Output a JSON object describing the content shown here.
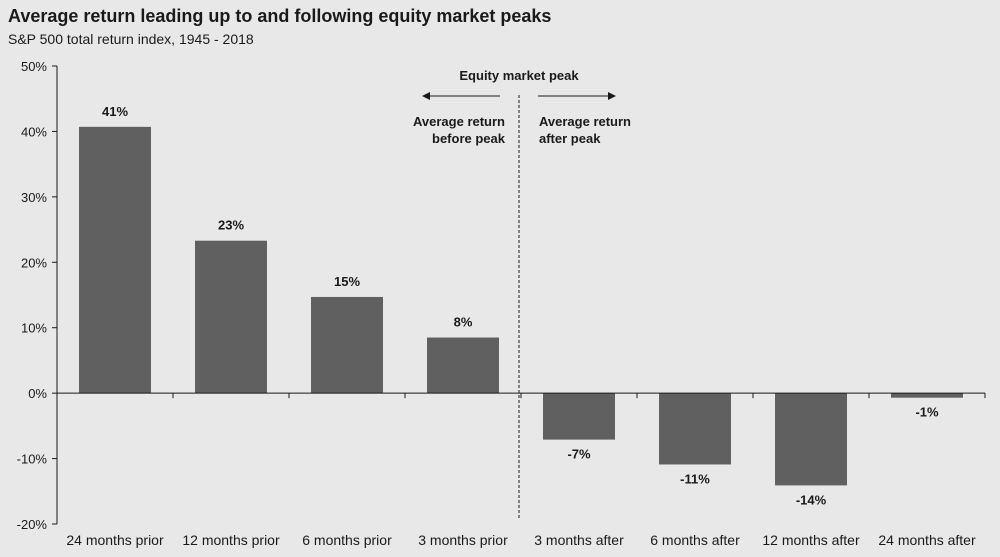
{
  "title": "Average return leading up to and following equity market peaks",
  "subtitle": "S&P 500 total return index, 1945 - 2018",
  "colors": {
    "bar": "#606060",
    "axis": "#1a1a1a",
    "background": "#e8e8e8"
  },
  "annotations": {
    "peak_label": "Equity market peak",
    "before_line1": "Average return",
    "before_line2": "before peak",
    "after_line1": "Average return",
    "after_line2": "after peak"
  },
  "chart_data": {
    "type": "bar",
    "categories": [
      "24 months prior",
      "12 months prior",
      "6 months prior",
      "3 months prior",
      "3 months after",
      "6 months after",
      "12 months after",
      "24 months after"
    ],
    "values": [
      40.7,
      23.3,
      14.7,
      8.5,
      -7.1,
      -10.9,
      -14.1,
      -0.7
    ],
    "data_labels": [
      "41%",
      "23%",
      "15%",
      "8%",
      "-7%",
      "-11%",
      "-14%",
      "-1%"
    ],
    "ylim": [
      -20,
      50
    ],
    "yticks": [
      50,
      40,
      30,
      20,
      10,
      0,
      -10,
      -20
    ],
    "ytick_labels": [
      "50%",
      "40%",
      "30%",
      "20%",
      "10%",
      "0%",
      "-10%",
      "-20%"
    ],
    "xlabel": "",
    "ylabel": "",
    "grid": false,
    "legend": "none"
  }
}
